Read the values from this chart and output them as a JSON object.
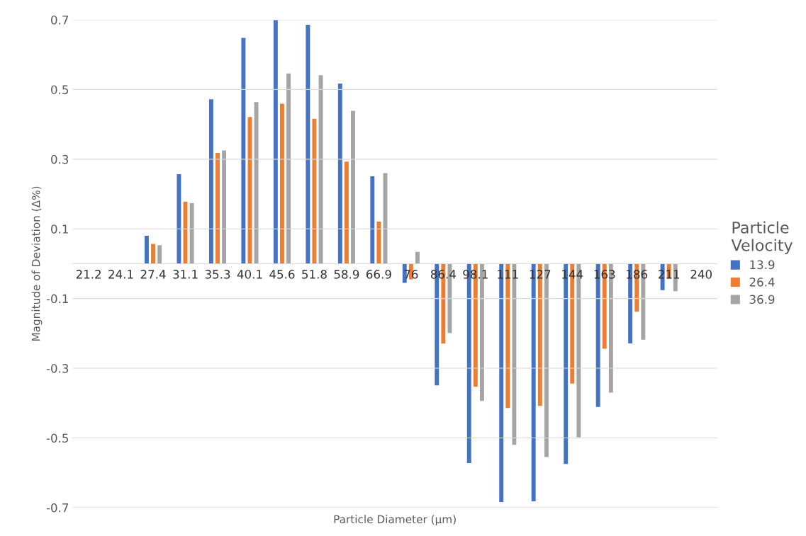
{
  "chart_data": {
    "type": "bar",
    "xlabel": "Particle Diameter (µm)",
    "ylabel": "Magnitude of Deviation (Δ%)",
    "legend_title": "Particle\nVelocity",
    "categories": [
      "21.2",
      "24.1",
      "27.4",
      "31.1",
      "35.3",
      "40.1",
      "45.6",
      "51.8",
      "58.9",
      "66.9",
      "76",
      "86.4",
      "98.1",
      "111",
      "127",
      "144",
      "163",
      "186",
      "211",
      "240"
    ],
    "series": [
      {
        "name": "13.9",
        "color": "#4472c4",
        "values": [
          null,
          null,
          0.08,
          0.257,
          0.472,
          0.648,
          0.7,
          0.686,
          0.517,
          0.251,
          -0.055,
          -0.349,
          -0.572,
          -0.684,
          -0.682,
          -0.575,
          -0.411,
          -0.229,
          -0.076,
          null
        ]
      },
      {
        "name": "26.4",
        "color": "#ed7d31",
        "values": [
          null,
          null,
          0.057,
          0.178,
          0.318,
          0.421,
          0.459,
          0.416,
          0.293,
          0.121,
          -0.045,
          -0.229,
          -0.353,
          -0.414,
          -0.408,
          -0.344,
          -0.244,
          -0.138,
          -0.043,
          null
        ]
      },
      {
        "name": "36.9",
        "color": "#a5a5a5",
        "values": [
          null,
          null,
          0.053,
          0.174,
          0.325,
          0.464,
          0.546,
          0.541,
          0.439,
          0.26,
          0.034,
          -0.199,
          -0.394,
          -0.52,
          -0.555,
          -0.498,
          -0.37,
          -0.218,
          -0.079,
          null
        ]
      }
    ],
    "ylim": [
      -0.7,
      0.7
    ],
    "yticks": [
      -0.7,
      -0.5,
      -0.3,
      -0.1,
      0.1,
      0.3,
      0.5,
      0.7
    ],
    "grid": "y",
    "legend": "right"
  }
}
